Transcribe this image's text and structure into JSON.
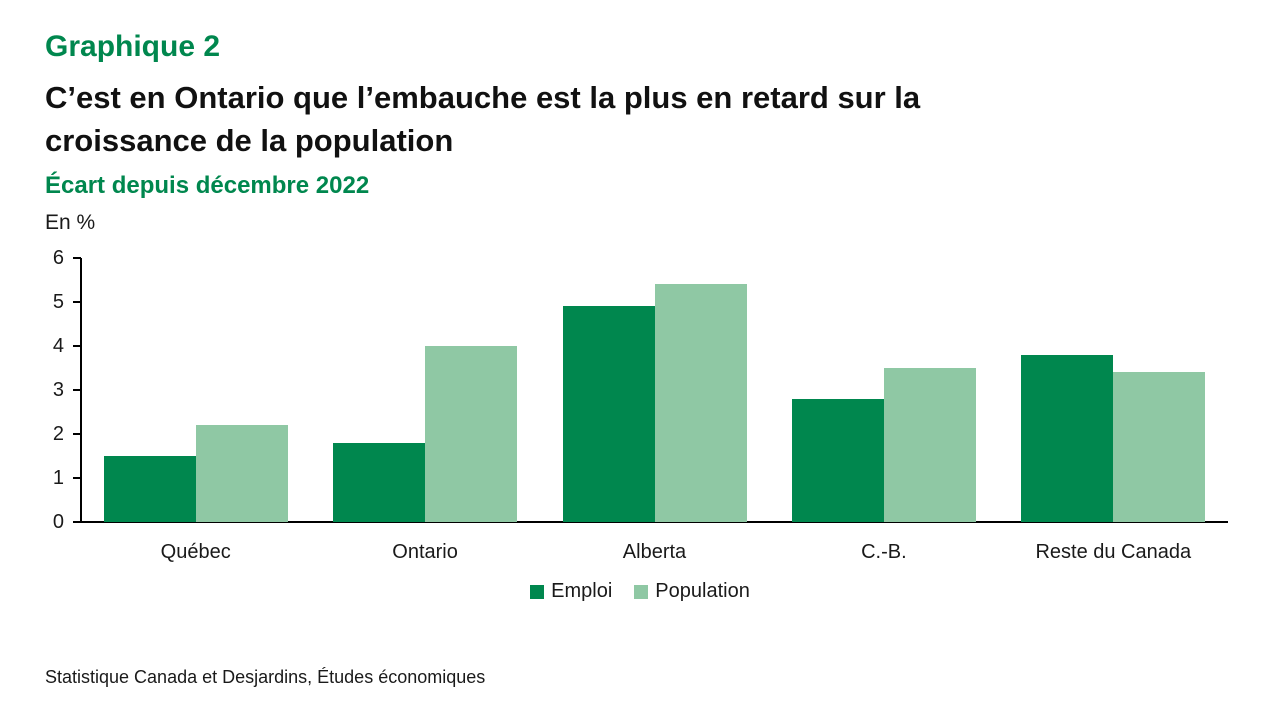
{
  "header": {
    "kicker": "Graphique 2",
    "title_lines": [
      "C’est en Ontario que l’embauche est la plus en retard sur la",
      "croissance de la population"
    ],
    "subtitle": "Écart depuis décembre 2022"
  },
  "chart_data": {
    "type": "bar",
    "categories": [
      "Québec",
      "Ontario",
      "Alberta",
      "C.-B.",
      "Reste du Canada"
    ],
    "series": [
      {
        "name": "Emploi",
        "color": "#00874E",
        "values": [
          1.5,
          1.8,
          4.9,
          2.8,
          3.8
        ]
      },
      {
        "name": "Population",
        "color": "#8FC8A4",
        "values": [
          2.2,
          4.0,
          5.4,
          3.5,
          3.4
        ]
      }
    ],
    "title": "C’est en Ontario que l’embauche est la plus en retard sur la croissance de la population",
    "subtitle": "Écart depuis décembre 2022",
    "xlabel": "",
    "ylabel": "En %",
    "ylim": [
      0,
      6
    ],
    "yticks": [
      0,
      1,
      2,
      3,
      4,
      5,
      6
    ],
    "grid": false,
    "legend_position": "bottom-center"
  },
  "footer": {
    "source": "Statistique Canada et Desjardins, Études économiques"
  }
}
